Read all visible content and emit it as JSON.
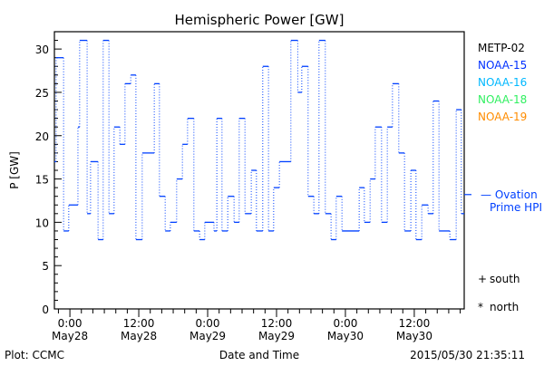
{
  "chart_data": {
    "type": "line",
    "title": "Hemispheric Power [GW]",
    "ylabel": "P [GW]",
    "xlabel": "Date and Time",
    "ylim": [
      0,
      32
    ],
    "xlim_hours": [
      -2.7,
      68.7
    ],
    "yticks": [
      0,
      5,
      10,
      15,
      20,
      25,
      30
    ],
    "xticks": [
      {
        "hour": 0,
        "time": "0:00",
        "date": "May28"
      },
      {
        "hour": 12,
        "time": "12:00",
        "date": "May28"
      },
      {
        "hour": 24,
        "time": "0:00",
        "date": "May29"
      },
      {
        "hour": 36,
        "time": "12:00",
        "date": "May29"
      },
      {
        "hour": 48,
        "time": "0:00",
        "date": "May30"
      },
      {
        "hour": 60,
        "time": "12:00",
        "date": "May30"
      }
    ],
    "series": [
      {
        "name": "NOAA-15",
        "color": "#0040ff",
        "step_start_hours": [
          -2.7,
          -2.4,
          -1.1,
          -0.2,
          1.4,
          1.7,
          3.0,
          3.6,
          4.9,
          5.8,
          6.8,
          7.7,
          8.7,
          9.6,
          10.6,
          11.5,
          12.6,
          14.7,
          15.6,
          16.6,
          17.5,
          18.6,
          19.6,
          20.5,
          21.6,
          22.6,
          23.5,
          25.1,
          25.6,
          26.5,
          27.5,
          28.6,
          29.5,
          30.5,
          31.6,
          32.5,
          33.6,
          34.6,
          35.5,
          36.5,
          38.5,
          39.7,
          40.4,
          41.5,
          42.5,
          43.4,
          44.5,
          45.5,
          46.4,
          47.4,
          50.4,
          51.3,
          52.3,
          53.2,
          54.3,
          55.3,
          56.2,
          57.3,
          58.3,
          59.4,
          60.3,
          61.3,
          62.4,
          63.3,
          64.3,
          66.2,
          67.3,
          68.2
        ],
        "values": [
          17,
          29,
          9,
          12,
          21,
          31,
          11,
          17,
          8,
          31,
          11,
          21,
          19,
          26,
          27,
          8,
          18,
          26,
          13,
          9,
          10,
          15,
          19,
          22,
          9,
          8,
          10,
          9,
          22,
          9,
          13,
          10,
          22,
          11,
          16,
          9,
          28,
          9,
          14,
          17,
          31,
          25,
          28,
          13,
          11,
          31,
          11,
          8,
          13,
          9,
          14,
          10,
          15,
          21,
          10,
          21,
          26,
          18,
          9,
          16,
          8,
          12,
          11,
          24,
          9,
          8,
          23,
          11
        ],
        "end_hour": 68.7
      }
    ],
    "ovation": {
      "label_line1": "— Ovation",
      "label_line2": "Prime HPI",
      "value": 13.2,
      "color": "#0040ff"
    },
    "legend": [
      {
        "name": "METP-02",
        "color": "#000000"
      },
      {
        "name": "NOAA-15",
        "color": "#0030ff"
      },
      {
        "name": "NOAA-16",
        "color": "#00b8ff"
      },
      {
        "name": "NOAA-18",
        "color": "#30f060"
      },
      {
        "name": "NOAA-19",
        "color": "#ff8c00"
      }
    ],
    "markers": [
      {
        "symbol": "+",
        "label": "south"
      },
      {
        "symbol": "*",
        "label": "north"
      }
    ],
    "footer_left": "Plot: CCMC",
    "footer_right": "2015/05/30 21:35:11"
  }
}
